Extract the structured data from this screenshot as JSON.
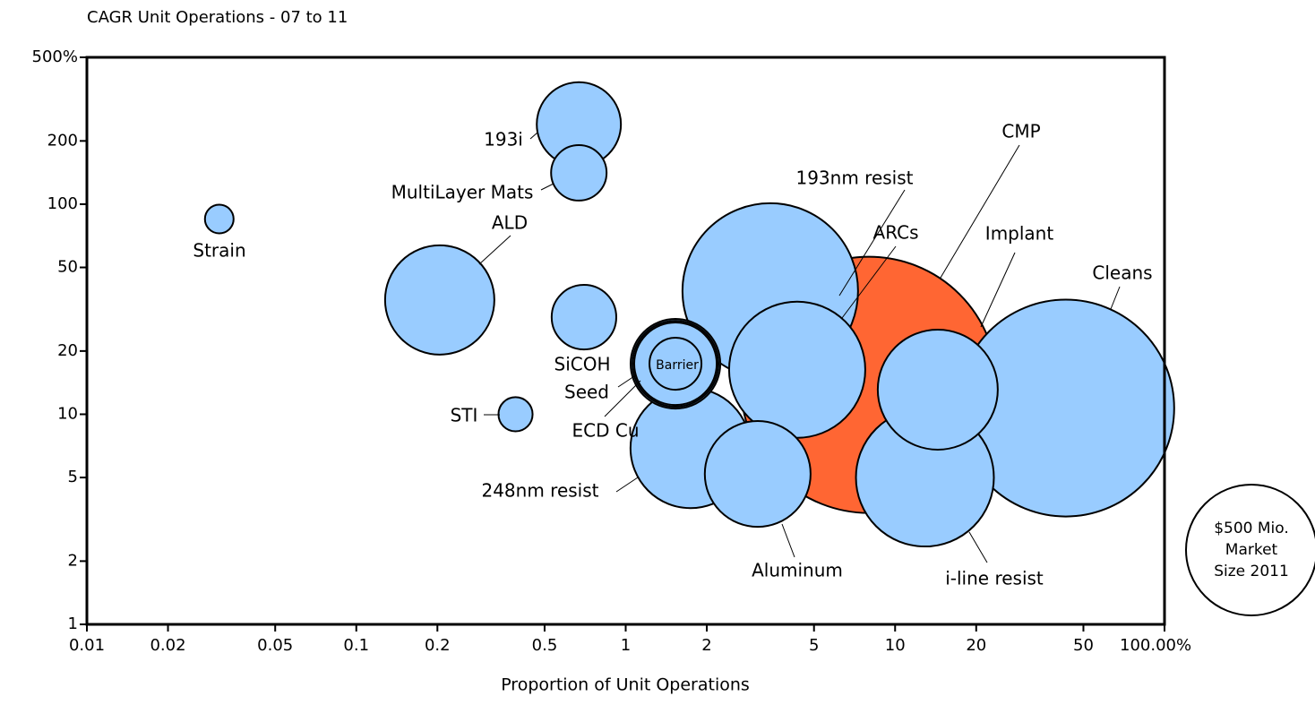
{
  "chart_data": {
    "type": "scatter",
    "title": "CAGR Unit Operations - 07 to 11",
    "xlabel": "Proportion of Unit Operations",
    "labels": [
      "CMP",
      "Cleans",
      "193nm resist",
      "i-line resist",
      "ARCs",
      "248nm resist",
      "Implant",
      "ALD",
      "Aluminum",
      "SiCOH",
      "Seed",
      "193i",
      "ECD Cu",
      null,
      "MultiLayer Mats",
      "Barrier",
      "STI",
      "Strain"
    ],
    "x": [
      8.0,
      43,
      3.44,
      12.9,
      4.33,
      1.74,
      14.4,
      0.204,
      3.09,
      1.53,
      1.53,
      0.67,
      1.53,
      0.7,
      0.67,
      1.53,
      0.39,
      0.031
    ],
    "values": [
      13.8,
      10.7,
      38.6,
      5.0,
      16.3,
      6.9,
      13.1,
      35,
      5.2,
      17.4,
      17.4,
      240,
      17.4,
      29,
      141,
      17.4,
      10,
      85
    ],
    "sizes": [
      1919,
      1374,
      901,
      556,
      542,
      421,
      421,
      349,
      327,
      235,
      216,
      207,
      199,
      122,
      90,
      79,
      34,
      24
    ],
    "colors": [
      "#ff6633",
      "#99ccff",
      "#99ccff",
      "#99ccff",
      "#99ccff",
      "#99ccff",
      "#99ccff",
      "#99ccff",
      "#99ccff",
      "#99ccff",
      "#99ccff",
      "#99ccff",
      "#99ccff",
      "#99ccff",
      "#99ccff",
      "#99ccff",
      "#99ccff",
      "#99ccff"
    ],
    "xlim": [
      0.01,
      100
    ],
    "ylim": [
      1,
      500
    ],
    "xlog": true,
    "ylog": true,
    "xticks": [
      0.01,
      0.02,
      0.05,
      0.1,
      0.2,
      0.5,
      1,
      2,
      5,
      10,
      20,
      50,
      {
        "value": 100,
        "label": "100.00%"
      }
    ],
    "yticks": [
      1,
      2,
      5,
      10,
      20,
      50,
      100,
      200,
      {
        "value": 500,
        "label": "500%"
      }
    ],
    "size_legend": {
      "size": 500,
      "label": [
        "$500 Mio.",
        "Market",
        "Size 2011"
      ]
    }
  }
}
